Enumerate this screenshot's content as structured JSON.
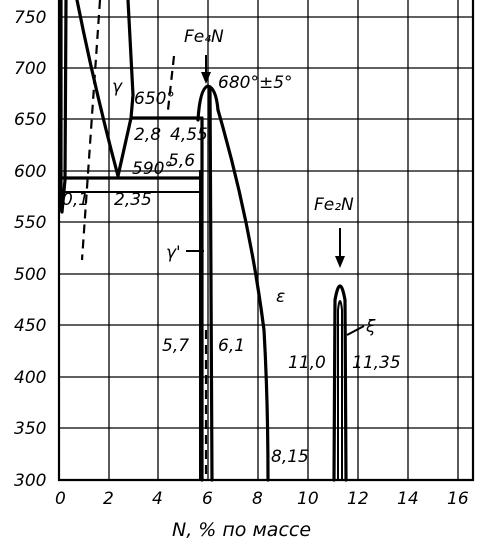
{
  "diagram": {
    "axes": {
      "x_title": "N, % по массе",
      "x_ticks": [
        "0",
        "2",
        "4",
        "6",
        "8",
        "10",
        "12",
        "14",
        "16"
      ],
      "y_ticks": [
        "300",
        "350",
        "400",
        "450",
        "500",
        "550",
        "600",
        "650",
        "700",
        "750"
      ]
    },
    "labels": {
      "fe4n": "Fe₄N",
      "fe2n": "Fe₂N",
      "t680": "680°±5°",
      "t650": "650°",
      "t590": "590°",
      "c5_6": "5,6",
      "gamma": "γ",
      "gamma_prime": "γ'",
      "epsilon": "ε",
      "xi": "ξ",
      "c0_1": "0,1",
      "c2_35": "2,35",
      "c2_8": "2,8",
      "c4_55": "4,55",
      "c5_7": "5,7",
      "c6_1": "6,1",
      "c8_15": "8,15",
      "c11_0": "11,0",
      "c11_35": "11,35"
    }
  }
}
